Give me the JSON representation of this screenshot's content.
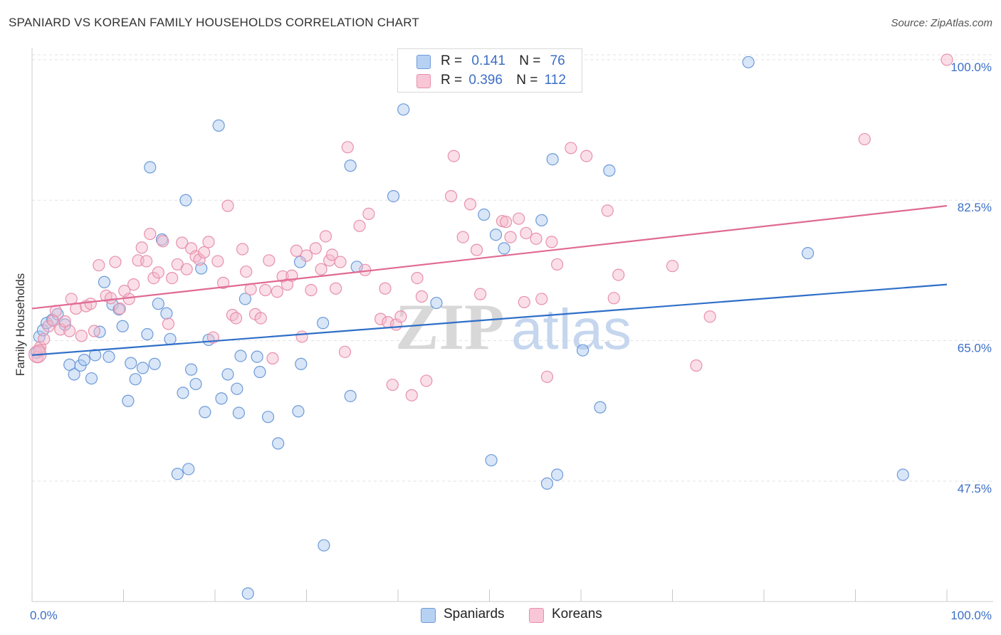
{
  "title": "SPANIARD VS KOREAN FAMILY HOUSEHOLDS CORRELATION CHART",
  "source": "Source: ZipAtlas.com",
  "legend_top": {
    "series1": {
      "r_label": "R =",
      "r_value": "0.141",
      "n_label": "N =",
      "n_value": "76"
    },
    "series2": {
      "r_label": "R =",
      "r_value": "0.396",
      "n_label": "N =",
      "n_value": "112"
    }
  },
  "legend_bottom": {
    "series1": "Spaniards",
    "series2": "Koreans"
  },
  "watermark": {
    "part1": "ZIP",
    "part2": "atlas"
  },
  "colors": {
    "blue_fill": "#a8c8f0",
    "blue_stroke": "#6d9ad8",
    "blue_line": "#2f6fc8",
    "pink_fill": "#f5b8cc",
    "pink_stroke": "#e890ab",
    "pink_line": "#e06a92",
    "tick_text": "#3b6fc6",
    "grid": "#e2e2e2"
  },
  "chart_data": {
    "type": "scatter",
    "title": "SPANIARD VS KOREAN FAMILY HOUSEHOLDS CORRELATION CHART",
    "xlabel": "",
    "ylabel": "Family Households",
    "xlim": [
      0,
      100
    ],
    "ylim": [
      32.5,
      101.5
    ],
    "x_tick_labels": [
      {
        "value": 0,
        "label": "0.0%"
      },
      {
        "value": 100,
        "label": "100.0%"
      }
    ],
    "y_ticks": [
      {
        "value": 47.5,
        "label": "47.5%"
      },
      {
        "value": 65.0,
        "label": "65.0%"
      },
      {
        "value": 82.5,
        "label": "82.5%"
      },
      {
        "value": 100.0,
        "label": "100.0%"
      }
    ],
    "series": [
      {
        "name": "Spaniards",
        "r": 0.141,
        "n": 76,
        "trend": {
          "x0": 0,
          "y0": 63.2,
          "x1": 100,
          "y1": 72.0
        },
        "points": [
          [
            0.5,
            63.5
          ],
          [
            0.8,
            65.5
          ],
          [
            1.2,
            66.3
          ],
          [
            1.6,
            67.2
          ],
          [
            2.2,
            67.6
          ],
          [
            2.8,
            68.3
          ],
          [
            3.6,
            67.0
          ],
          [
            4.1,
            62.0
          ],
          [
            4.6,
            60.8
          ],
          [
            5.3,
            61.9
          ],
          [
            5.7,
            62.6
          ],
          [
            6.5,
            60.3
          ],
          [
            6.9,
            63.2
          ],
          [
            7.4,
            66.1
          ],
          [
            7.9,
            72.3
          ],
          [
            8.4,
            63.0
          ],
          [
            8.8,
            69.5
          ],
          [
            9.5,
            68.9
          ],
          [
            9.9,
            66.8
          ],
          [
            10.5,
            57.5
          ],
          [
            10.8,
            62.2
          ],
          [
            11.3,
            60.2
          ],
          [
            12.1,
            61.6
          ],
          [
            12.6,
            65.8
          ],
          [
            12.9,
            86.6
          ],
          [
            13.4,
            62.1
          ],
          [
            13.8,
            69.6
          ],
          [
            14.2,
            77.6
          ],
          [
            14.7,
            68.4
          ],
          [
            15.1,
            65.2
          ],
          [
            15.9,
            48.4
          ],
          [
            16.5,
            58.5
          ],
          [
            16.8,
            82.5
          ],
          [
            17.1,
            49.0
          ],
          [
            17.4,
            61.4
          ],
          [
            17.9,
            59.6
          ],
          [
            18.5,
            74.0
          ],
          [
            18.9,
            56.1
          ],
          [
            19.3,
            65.1
          ],
          [
            20.4,
            91.8
          ],
          [
            20.7,
            57.8
          ],
          [
            21.4,
            60.8
          ],
          [
            22.4,
            59.0
          ],
          [
            22.8,
            63.1
          ],
          [
            23.3,
            70.2
          ],
          [
            23.6,
            33.5
          ],
          [
            24.6,
            63.0
          ],
          [
            24.9,
            61.1
          ],
          [
            25.8,
            55.5
          ],
          [
            26.9,
            52.2
          ],
          [
            29.1,
            56.2
          ],
          [
            29.4,
            62.1
          ],
          [
            29.3,
            74.8
          ],
          [
            31.9,
            39.5
          ],
          [
            31.8,
            67.2
          ],
          [
            34.8,
            58.1
          ],
          [
            34.8,
            86.8
          ],
          [
            40.6,
            93.8
          ],
          [
            44.2,
            69.7
          ],
          [
            49.4,
            80.7
          ],
          [
            50.2,
            50.1
          ],
          [
            50.7,
            78.2
          ],
          [
            51.6,
            76.5
          ],
          [
            55.7,
            80.0
          ],
          [
            56.3,
            47.2
          ],
          [
            56.9,
            87.6
          ],
          [
            57.4,
            48.3
          ],
          [
            60.2,
            63.8
          ],
          [
            62.1,
            56.7
          ],
          [
            63.1,
            86.2
          ],
          [
            78.3,
            99.7
          ],
          [
            84.8,
            75.9
          ],
          [
            95.2,
            48.3
          ],
          [
            39.5,
            83.0
          ],
          [
            35.5,
            74.2
          ],
          [
            22.6,
            56.0
          ]
        ]
      },
      {
        "name": "Koreans",
        "r": 0.396,
        "n": 112,
        "trend": {
          "x0": 0,
          "y0": 69.0,
          "x1": 100,
          "y1": 81.8
        },
        "points": [
          [
            0.6,
            63.0
          ],
          [
            0.9,
            64.2
          ],
          [
            1.3,
            65.2
          ],
          [
            1.8,
            66.8
          ],
          [
            2.3,
            67.5
          ],
          [
            2.6,
            68.7
          ],
          [
            3.1,
            66.4
          ],
          [
            3.6,
            67.4
          ],
          [
            4.1,
            66.2
          ],
          [
            4.3,
            70.2
          ],
          [
            4.8,
            69.0
          ],
          [
            5.4,
            65.6
          ],
          [
            5.9,
            69.3
          ],
          [
            6.4,
            69.6
          ],
          [
            6.8,
            66.2
          ],
          [
            7.3,
            74.4
          ],
          [
            8.1,
            70.6
          ],
          [
            8.6,
            70.3
          ],
          [
            9.1,
            74.8
          ],
          [
            9.6,
            69.0
          ],
          [
            10.1,
            71.2
          ],
          [
            10.6,
            70.2
          ],
          [
            11.1,
            72.0
          ],
          [
            11.6,
            75.0
          ],
          [
            12.0,
            76.6
          ],
          [
            12.5,
            74.9
          ],
          [
            12.9,
            78.3
          ],
          [
            13.3,
            72.8
          ],
          [
            13.8,
            73.5
          ],
          [
            14.3,
            77.4
          ],
          [
            14.9,
            67.1
          ],
          [
            15.3,
            72.8
          ],
          [
            15.9,
            74.5
          ],
          [
            16.4,
            77.2
          ],
          [
            16.9,
            73.9
          ],
          [
            17.4,
            76.5
          ],
          [
            17.9,
            75.5
          ],
          [
            18.3,
            75.1
          ],
          [
            18.8,
            76.0
          ],
          [
            19.3,
            77.3
          ],
          [
            19.8,
            65.4
          ],
          [
            20.3,
            74.9
          ],
          [
            20.9,
            72.2
          ],
          [
            21.4,
            81.8
          ],
          [
            21.9,
            68.2
          ],
          [
            22.3,
            67.8
          ],
          [
            23.0,
            76.4
          ],
          [
            23.4,
            73.6
          ],
          [
            23.9,
            71.4
          ],
          [
            24.4,
            68.3
          ],
          [
            25.0,
            67.8
          ],
          [
            25.5,
            71.3
          ],
          [
            25.9,
            75.0
          ],
          [
            26.3,
            62.8
          ],
          [
            26.8,
            71.1
          ],
          [
            27.4,
            73.0
          ],
          [
            27.9,
            72.0
          ],
          [
            28.4,
            73.1
          ],
          [
            28.9,
            76.2
          ],
          [
            29.5,
            65.5
          ],
          [
            30.0,
            75.6
          ],
          [
            30.5,
            71.3
          ],
          [
            31.0,
            76.5
          ],
          [
            31.6,
            73.9
          ],
          [
            32.1,
            78.0
          ],
          [
            32.5,
            75.0
          ],
          [
            32.8,
            75.7
          ],
          [
            33.2,
            71.5
          ],
          [
            33.7,
            74.8
          ],
          [
            34.2,
            63.6
          ],
          [
            34.5,
            89.1
          ],
          [
            35.8,
            79.3
          ],
          [
            36.4,
            73.8
          ],
          [
            36.8,
            80.8
          ],
          [
            38.1,
            67.7
          ],
          [
            38.6,
            71.5
          ],
          [
            38.9,
            67.3
          ],
          [
            39.4,
            59.5
          ],
          [
            39.8,
            67.0
          ],
          [
            40.3,
            68.0
          ],
          [
            41.5,
            58.2
          ],
          [
            42.1,
            72.8
          ],
          [
            42.6,
            70.5
          ],
          [
            43.1,
            60.0
          ],
          [
            46.1,
            88.0
          ],
          [
            47.1,
            77.9
          ],
          [
            47.9,
            82.0
          ],
          [
            48.6,
            76.3
          ],
          [
            49.0,
            70.8
          ],
          [
            51.4,
            79.9
          ],
          [
            51.8,
            79.8
          ],
          [
            52.3,
            77.9
          ],
          [
            53.2,
            80.2
          ],
          [
            53.8,
            69.8
          ],
          [
            54.0,
            78.4
          ],
          [
            55.1,
            77.7
          ],
          [
            55.7,
            70.2
          ],
          [
            56.3,
            60.5
          ],
          [
            56.8,
            77.3
          ],
          [
            57.4,
            74.5
          ],
          [
            58.9,
            89.0
          ],
          [
            60.6,
            88.0
          ],
          [
            62.9,
            81.2
          ],
          [
            63.6,
            70.3
          ],
          [
            64.1,
            73.2
          ],
          [
            70.0,
            74.3
          ],
          [
            72.6,
            61.9
          ],
          [
            74.1,
            68.0
          ],
          [
            91.0,
            90.1
          ],
          [
            100.0,
            100.0
          ],
          [
            0.8,
            63.8
          ],
          [
            45.8,
            83.0
          ]
        ]
      }
    ]
  }
}
